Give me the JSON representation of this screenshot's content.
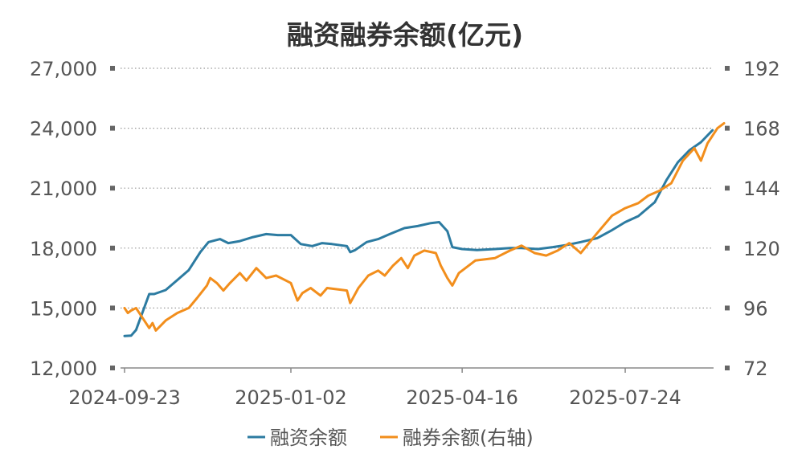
{
  "chart_data": {
    "type": "line",
    "title": "融资融券余额(亿元)",
    "x_ticks": [
      "2024-09-23",
      "2025-01-02",
      "2025-04-16",
      "2025-07-24"
    ],
    "y_left": {
      "ticks": [
        "12,000",
        "15,000",
        "18,000",
        "21,000",
        "24,000",
        "27,000"
      ],
      "min": 12000,
      "max": 27000
    },
    "y_right": {
      "ticks": [
        "72",
        "96",
        "120",
        "144",
        "168",
        "192"
      ],
      "min": 72,
      "max": 192
    },
    "grid": true,
    "legend_position": "bottom",
    "colors": {
      "margin": "#2c7ba1",
      "short": "#f28e1c",
      "grid": "#999999",
      "axis": "#888888",
      "text": "#555555",
      "title": "#333333"
    },
    "series": [
      {
        "name": "融资余额",
        "axis": "left",
        "color": "#2c7ba1",
        "points": [
          [
            "2024-09-23",
            13600
          ],
          [
            "2024-09-27",
            13620
          ],
          [
            "2024-09-30",
            13900
          ],
          [
            "2024-10-08",
            15700
          ],
          [
            "2024-10-11",
            15700
          ],
          [
            "2024-10-18",
            15900
          ],
          [
            "2024-10-25",
            16400
          ],
          [
            "2024-11-01",
            16900
          ],
          [
            "2024-11-08",
            17800
          ],
          [
            "2024-11-13",
            18300
          ],
          [
            "2024-11-20",
            18450
          ],
          [
            "2024-11-25",
            18250
          ],
          [
            "2024-12-02",
            18350
          ],
          [
            "2024-12-10",
            18550
          ],
          [
            "2024-12-18",
            18700
          ],
          [
            "2024-12-25",
            18650
          ],
          [
            "2025-01-02",
            18650
          ],
          [
            "2025-01-08",
            18200
          ],
          [
            "2025-01-15",
            18100
          ],
          [
            "2025-01-21",
            18250
          ],
          [
            "2025-01-27",
            18200
          ],
          [
            "2025-02-05",
            18100
          ],
          [
            "2025-02-07",
            17800
          ],
          [
            "2025-02-10",
            17900
          ],
          [
            "2025-02-17",
            18300
          ],
          [
            "2025-02-24",
            18450
          ],
          [
            "2025-03-03",
            18700
          ],
          [
            "2025-03-12",
            19000
          ],
          [
            "2025-03-20",
            19100
          ],
          [
            "2025-03-28",
            19250
          ],
          [
            "2025-04-02",
            19300
          ],
          [
            "2025-04-07",
            18850
          ],
          [
            "2025-04-10",
            18050
          ],
          [
            "2025-04-16",
            17950
          ],
          [
            "2025-04-25",
            17900
          ],
          [
            "2025-05-06",
            17950
          ],
          [
            "2025-05-15",
            18000
          ],
          [
            "2025-05-22",
            18000
          ],
          [
            "2025-06-01",
            17950
          ],
          [
            "2025-06-10",
            18050
          ],
          [
            "2025-06-18",
            18150
          ],
          [
            "2025-06-27",
            18300
          ],
          [
            "2025-07-07",
            18500
          ],
          [
            "2025-07-16",
            18900
          ],
          [
            "2025-07-24",
            19300
          ],
          [
            "2025-08-01",
            19600
          ],
          [
            "2025-08-11",
            20300
          ],
          [
            "2025-08-18",
            21400
          ],
          [
            "2025-08-25",
            22300
          ],
          [
            "2025-09-01",
            22900
          ],
          [
            "2025-09-08",
            23300
          ],
          [
            "2025-09-15",
            23900
          ]
        ]
      },
      {
        "name": "融券余额(右轴)",
        "axis": "right",
        "color": "#f28e1c",
        "points": [
          [
            "2024-09-23",
            96
          ],
          [
            "2024-09-25",
            94
          ],
          [
            "2024-09-27",
            95
          ],
          [
            "2024-09-30",
            96
          ],
          [
            "2024-10-08",
            88
          ],
          [
            "2024-10-10",
            90
          ],
          [
            "2024-10-12",
            87
          ],
          [
            "2024-10-15",
            89
          ],
          [
            "2024-10-18",
            91
          ],
          [
            "2024-10-25",
            94
          ],
          [
            "2024-11-01",
            96
          ],
          [
            "2024-11-06",
            100
          ],
          [
            "2024-11-12",
            105
          ],
          [
            "2024-11-14",
            108
          ],
          [
            "2024-11-18",
            106
          ],
          [
            "2024-11-22",
            103
          ],
          [
            "2024-11-26",
            106
          ],
          [
            "2024-12-02",
            110
          ],
          [
            "2024-12-06",
            107
          ],
          [
            "2024-12-12",
            112
          ],
          [
            "2024-12-18",
            108
          ],
          [
            "2024-12-24",
            109
          ],
          [
            "2025-01-02",
            106
          ],
          [
            "2025-01-06",
            99
          ],
          [
            "2025-01-09",
            102
          ],
          [
            "2025-01-14",
            104
          ],
          [
            "2025-01-20",
            101
          ],
          [
            "2025-01-24",
            104
          ],
          [
            "2025-02-05",
            103
          ],
          [
            "2025-02-07",
            98
          ],
          [
            "2025-02-12",
            104
          ],
          [
            "2025-02-18",
            109
          ],
          [
            "2025-02-24",
            111
          ],
          [
            "2025-02-28",
            109
          ],
          [
            "2025-03-05",
            113
          ],
          [
            "2025-03-10",
            116
          ],
          [
            "2025-03-14",
            112
          ],
          [
            "2025-03-18",
            117
          ],
          [
            "2025-03-24",
            119
          ],
          [
            "2025-03-31",
            118
          ],
          [
            "2025-04-03",
            113
          ],
          [
            "2025-04-07",
            108
          ],
          [
            "2025-04-10",
            105
          ],
          [
            "2025-04-14",
            110
          ],
          [
            "2025-04-18",
            112
          ],
          [
            "2025-04-24",
            115
          ],
          [
            "2025-05-06",
            116
          ],
          [
            "2025-05-15",
            119
          ],
          [
            "2025-05-22",
            121
          ],
          [
            "2025-05-30",
            118
          ],
          [
            "2025-06-06",
            117
          ],
          [
            "2025-06-13",
            119
          ],
          [
            "2025-06-20",
            122
          ],
          [
            "2025-06-27",
            118
          ],
          [
            "2025-07-07",
            126
          ],
          [
            "2025-07-16",
            133
          ],
          [
            "2025-07-24",
            136
          ],
          [
            "2025-08-01",
            138
          ],
          [
            "2025-08-07",
            141
          ],
          [
            "2025-08-14",
            143
          ],
          [
            "2025-08-21",
            146
          ],
          [
            "2025-08-28",
            155
          ],
          [
            "2025-09-04",
            160
          ],
          [
            "2025-09-08",
            155
          ],
          [
            "2025-09-12",
            162
          ],
          [
            "2025-09-18",
            168
          ],
          [
            "2025-09-22",
            170
          ]
        ]
      }
    ]
  }
}
